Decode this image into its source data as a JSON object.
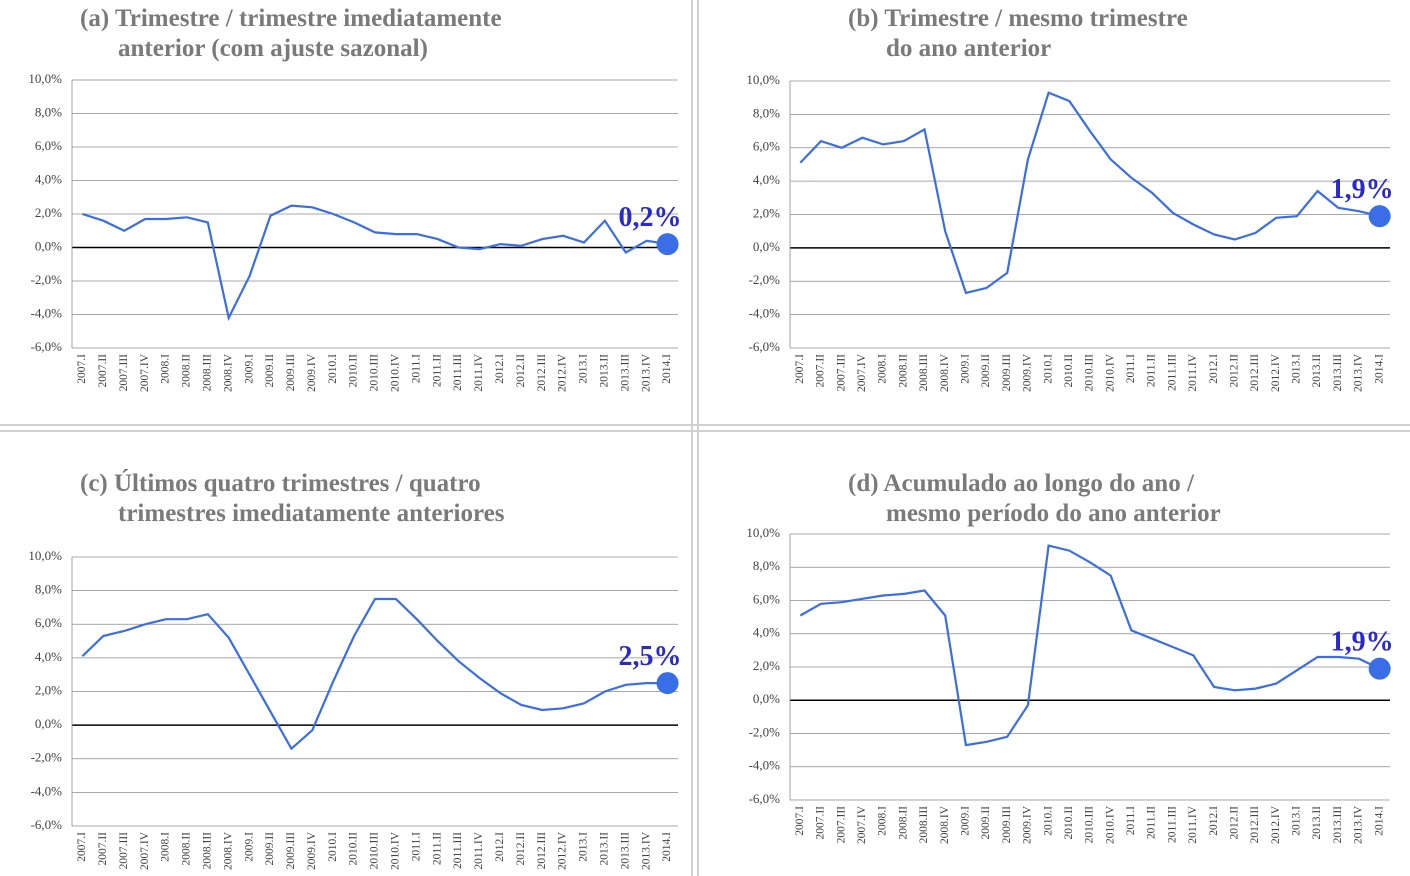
{
  "chart_data": [
    {
      "type": "line",
      "title": [
        "(a) Trimestre / trimestre imediatamente",
        "anterior (com ajuste sazonal)"
      ],
      "categories": [
        "2007.I",
        "2007.II",
        "2007.III",
        "2007.IV",
        "2008.I",
        "2008.II",
        "2008.III",
        "2008.IV",
        "2009.I",
        "2009.II",
        "2009.III",
        "2009.IV",
        "2010.I",
        "2010.II",
        "2010.III",
        "2010.IV",
        "2011.I",
        "2011.II",
        "2011.III",
        "2011.IV",
        "2012.I",
        "2012.II",
        "2012.III",
        "2012.IV",
        "2013.I",
        "2013.II",
        "2013.III",
        "2013.IV",
        "2014.I"
      ],
      "series": [
        {
          "color": "#3a6ee6",
          "values": [
            2.0,
            1.6,
            1.0,
            1.7,
            1.7,
            1.8,
            1.5,
            -4.2,
            -1.7,
            1.9,
            2.5,
            2.4,
            2.0,
            1.5,
            0.9,
            0.8,
            0.8,
            0.5,
            0.0,
            -0.1,
            0.2,
            0.1,
            0.5,
            0.7,
            0.3,
            1.6,
            -0.3,
            0.4,
            0.2
          ],
          "value_labels": [
            null,
            null,
            null,
            null,
            null,
            null,
            null,
            null,
            null,
            null,
            null,
            null,
            null,
            null,
            null,
            null,
            null,
            null,
            null,
            null,
            null,
            null,
            null,
            null,
            null,
            null,
            null,
            null,
            "0,2%"
          ]
        }
      ],
      "ylim": [
        -6,
        10
      ],
      "yticks": [
        {
          "value": -6,
          "label": "-6,0%"
        },
        {
          "value": -4,
          "label": "-4,0%"
        },
        {
          "value": -2,
          "label": "-2,0%"
        },
        {
          "value": 0,
          "label": "0,0%"
        },
        {
          "value": 2,
          "label": "2,0%"
        },
        {
          "value": 4,
          "label": "4,0%"
        },
        {
          "value": 6,
          "label": "6,0%"
        },
        {
          "value": 8,
          "label": "8,0%"
        },
        {
          "value": 10,
          "label": "10,0%"
        }
      ],
      "grid": true
    },
    {
      "type": "line",
      "title": [
        "(b) Trimestre / mesmo trimestre",
        "do ano anterior"
      ],
      "categories": [
        "2007.I",
        "2007.II",
        "2007.III",
        "2007.IV",
        "2008.I",
        "2008.II",
        "2008.III",
        "2008.IV",
        "2009.I",
        "2009.II",
        "2009.III",
        "2009.IV",
        "2010.I",
        "2010.II",
        "2010.III",
        "2010.IV",
        "2011.I",
        "2011.II",
        "2011.III",
        "2011.IV",
        "2012.I",
        "2012.II",
        "2012.III",
        "2012.IV",
        "2013.I",
        "2013.II",
        "2013.III",
        "2013.IV",
        "2014.I"
      ],
      "series": [
        {
          "color": "#3a6ee6",
          "values": [
            5.1,
            6.4,
            6.0,
            6.6,
            6.2,
            6.4,
            7.1,
            1.0,
            -2.7,
            -2.4,
            -1.5,
            5.3,
            9.3,
            8.8,
            7.0,
            5.3,
            4.2,
            3.3,
            2.1,
            1.4,
            0.8,
            0.5,
            0.9,
            1.8,
            1.9,
            3.4,
            2.4,
            2.2,
            1.9
          ],
          "value_labels": [
            null,
            null,
            null,
            null,
            null,
            null,
            null,
            null,
            null,
            null,
            null,
            null,
            null,
            null,
            null,
            null,
            null,
            null,
            null,
            null,
            null,
            null,
            null,
            null,
            null,
            null,
            null,
            null,
            "1,9%"
          ]
        }
      ],
      "ylim": [
        -6,
        10
      ],
      "yticks": [
        {
          "value": -6,
          "label": "-6,0%"
        },
        {
          "value": -4,
          "label": "-4,0%"
        },
        {
          "value": -2,
          "label": "-2,0%"
        },
        {
          "value": 0,
          "label": "0,0%"
        },
        {
          "value": 2,
          "label": "2,0%"
        },
        {
          "value": 4,
          "label": "4,0%"
        },
        {
          "value": 6,
          "label": "6,0%"
        },
        {
          "value": 8,
          "label": "8,0%"
        },
        {
          "value": 10,
          "label": "10,0%"
        }
      ],
      "grid": true
    },
    {
      "type": "line",
      "title": [
        "(c) Últimos quatro trimestres / quatro",
        "trimestres imediatamente anteriores"
      ],
      "categories": [
        "2007.I",
        "2007.II",
        "2007.III",
        "2007.IV",
        "2008.I",
        "2008.II",
        "2008.III",
        "2008.IV",
        "2009.I",
        "2009.II",
        "2009.III",
        "2009.IV",
        "2010.I",
        "2010.II",
        "2010.III",
        "2010.IV",
        "2011.I",
        "2011.II",
        "2011.III",
        "2011.IV",
        "2012.I",
        "2012.II",
        "2012.III",
        "2012.IV",
        "2013.I",
        "2013.II",
        "2013.III",
        "2013.IV",
        "2014.I"
      ],
      "series": [
        {
          "color": "#3a6ee6",
          "values": [
            4.1,
            5.3,
            5.6,
            6.0,
            6.3,
            6.3,
            6.6,
            5.2,
            3.0,
            0.8,
            -1.4,
            -0.3,
            2.6,
            5.3,
            7.5,
            7.5,
            6.3,
            5.0,
            3.8,
            2.8,
            1.9,
            1.2,
            0.9,
            1.0,
            1.3,
            2.0,
            2.4,
            2.5,
            2.5
          ],
          "value_labels": [
            null,
            null,
            null,
            null,
            null,
            null,
            null,
            null,
            null,
            null,
            null,
            null,
            null,
            null,
            null,
            null,
            null,
            null,
            null,
            null,
            null,
            null,
            null,
            null,
            null,
            null,
            null,
            null,
            "2,5%"
          ]
        }
      ],
      "ylim": [
        -6,
        10
      ],
      "yticks": [
        {
          "value": -6,
          "label": "-6,0%"
        },
        {
          "value": -4,
          "label": "-4,0%"
        },
        {
          "value": -2,
          "label": "-2,0%"
        },
        {
          "value": 0,
          "label": "0,0%"
        },
        {
          "value": 2,
          "label": "2,0%"
        },
        {
          "value": 4,
          "label": "4,0%"
        },
        {
          "value": 6,
          "label": "6,0%"
        },
        {
          "value": 8,
          "label": "8,0%"
        },
        {
          "value": 10,
          "label": "10,0%"
        }
      ],
      "grid": true
    },
    {
      "type": "line",
      "title": [
        "(d) Acumulado ao longo do ano /",
        "mesmo período do ano anterior"
      ],
      "categories": [
        "2007.I",
        "2007.II",
        "2007.III",
        "2007.IV",
        "2008.I",
        "2008.II",
        "2008.III",
        "2008.IV",
        "2009.I",
        "2009.II",
        "2009.III",
        "2009.IV",
        "2010.I",
        "2010.II",
        "2010.III",
        "2010.IV",
        "2011.I",
        "2011.II",
        "2011.III",
        "2011.IV",
        "2012.I",
        "2012.II",
        "2012.III",
        "2012.IV",
        "2013.I",
        "2013.II",
        "2013.III",
        "2013.IV",
        "2014.I"
      ],
      "series": [
        {
          "color": "#3a6ee6",
          "values": [
            5.1,
            5.8,
            5.9,
            6.1,
            6.3,
            6.4,
            6.6,
            5.1,
            -2.7,
            -2.5,
            -2.2,
            -0.3,
            9.3,
            9.0,
            8.3,
            7.5,
            4.2,
            3.7,
            3.2,
            2.7,
            0.8,
            0.6,
            0.7,
            1.0,
            1.8,
            2.6,
            2.6,
            2.5,
            1.9
          ],
          "value_labels": [
            null,
            null,
            null,
            null,
            null,
            null,
            null,
            null,
            null,
            null,
            null,
            null,
            null,
            null,
            null,
            null,
            null,
            null,
            null,
            null,
            null,
            null,
            null,
            null,
            null,
            null,
            null,
            null,
            "1,9%"
          ]
        }
      ],
      "ylim": [
        -6,
        10
      ],
      "yticks": [
        {
          "value": -6,
          "label": "-6,0%"
        },
        {
          "value": -4,
          "label": "-4,0%"
        },
        {
          "value": -2,
          "label": "-2,0%"
        },
        {
          "value": 0,
          "label": "0,0%"
        },
        {
          "value": 2,
          "label": "2,0%"
        },
        {
          "value": 4,
          "label": "4,0%"
        },
        {
          "value": 6,
          "label": "6,0%"
        },
        {
          "value": 8,
          "label": "8,0%"
        },
        {
          "value": 10,
          "label": "10,0%"
        }
      ],
      "grid": true
    }
  ]
}
